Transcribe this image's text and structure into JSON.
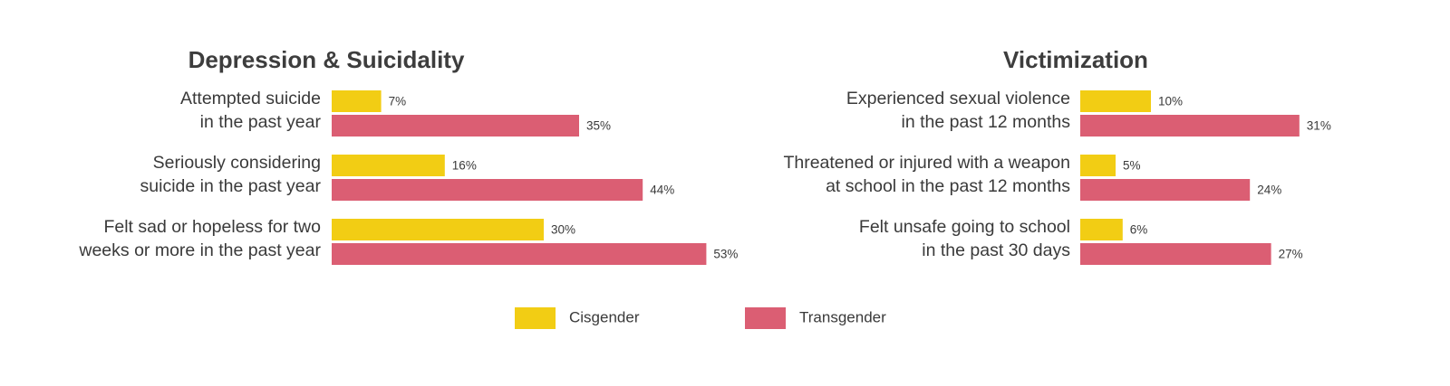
{
  "chart_data": [
    {
      "type": "bar",
      "orientation": "horizontal",
      "title": "Depression & Suicidality",
      "categories": [
        [
          "Attempted suicide",
          "in the past year"
        ],
        [
          "Seriously considering",
          "suicide in the past year"
        ],
        [
          "Felt sad or hopeless for two",
          "weeks or more in the past year"
        ]
      ],
      "series": [
        {
          "name": "Cisgender",
          "color": "#f2cd14",
          "values": [
            7,
            16,
            30
          ],
          "labels": [
            "7%",
            "16%",
            "30%"
          ]
        },
        {
          "name": "Transgender",
          "color": "#db5e73",
          "values": [
            35,
            44,
            53
          ],
          "labels": [
            "35%",
            "44%",
            "53%"
          ]
        }
      ],
      "unit": "%",
      "grid": false
    },
    {
      "type": "bar",
      "orientation": "horizontal",
      "title": "Victimization",
      "categories": [
        [
          "Experienced sexual violence",
          "in the past 12 months"
        ],
        [
          "Threatened or injured with a weapon",
          "at school in the past 12 months"
        ],
        [
          "Felt unsafe going to school",
          "in the past 30 days"
        ]
      ],
      "series": [
        {
          "name": "Cisgender",
          "color": "#f2cd14",
          "values": [
            10,
            5,
            6
          ],
          "labels": [
            "10%",
            "5%",
            "6%"
          ]
        },
        {
          "name": "Transgender",
          "color": "#db5e73",
          "values": [
            31,
            24,
            27
          ],
          "labels": [
            "31%",
            "24%",
            "27%"
          ]
        }
      ],
      "unit": "%",
      "grid": false
    }
  ],
  "legend": {
    "placement": "bottom-center",
    "items": [
      {
        "label": "Cisgender",
        "color": "#f2cd14"
      },
      {
        "label": "Transgender",
        "color": "#db5e73"
      }
    ]
  }
}
